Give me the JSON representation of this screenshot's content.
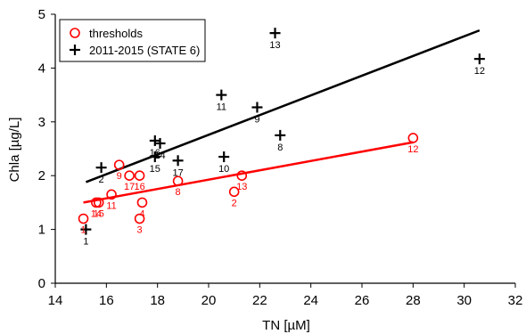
{
  "chart_data": {
    "type": "scatter",
    "xlabel": "TN [µM]",
    "ylabel": "Chla [µg/L]",
    "xlim": [
      14,
      32
    ],
    "ylim": [
      0,
      5
    ],
    "x_ticks": [
      14,
      16,
      18,
      20,
      22,
      24,
      26,
      28,
      30,
      32
    ],
    "y_ticks": [
      0,
      1,
      2,
      3,
      4,
      5
    ],
    "grid": false,
    "legend_position": "top-left",
    "series": [
      {
        "name": "thresholds",
        "marker": "circle",
        "color": "#ff0000",
        "points": [
          {
            "x": 15.1,
            "y": 1.2,
            "label": "1"
          },
          {
            "x": 15.6,
            "y": 1.5,
            "label": "14"
          },
          {
            "x": 15.7,
            "y": 1.5,
            "label": "15"
          },
          {
            "x": 16.2,
            "y": 1.65,
            "label": "11"
          },
          {
            "x": 16.5,
            "y": 2.2,
            "label": "9"
          },
          {
            "x": 16.9,
            "y": 2.0,
            "label": "17"
          },
          {
            "x": 17.3,
            "y": 2.0,
            "label": "16"
          },
          {
            "x": 17.3,
            "y": 1.2,
            "label": "3"
          },
          {
            "x": 17.4,
            "y": 1.5,
            "label": "4"
          },
          {
            "x": 18.8,
            "y": 1.9,
            "label": "8"
          },
          {
            "x": 21.0,
            "y": 1.7,
            "label": "2"
          },
          {
            "x": 21.3,
            "y": 2.0,
            "label": "13"
          },
          {
            "x": 28.0,
            "y": 2.7,
            "label": "12"
          }
        ],
        "trend": {
          "x": [
            15.1,
            28.0
          ],
          "y": [
            1.5,
            2.62
          ]
        }
      },
      {
        "name": "2011-2015 (STATE 6)",
        "marker": "plus",
        "color": "#000000",
        "points": [
          {
            "x": 15.2,
            "y": 1.0,
            "label": "1"
          },
          {
            "x": 15.8,
            "y": 2.15,
            "label": "2"
          },
          {
            "x": 17.9,
            "y": 2.65,
            "label": "16"
          },
          {
            "x": 18.1,
            "y": 2.6,
            "label": "14"
          },
          {
            "x": 17.9,
            "y": 2.35,
            "label": "15"
          },
          {
            "x": 18.8,
            "y": 2.28,
            "label": "17"
          },
          {
            "x": 20.5,
            "y": 3.5,
            "label": "11"
          },
          {
            "x": 20.6,
            "y": 2.35,
            "label": "10"
          },
          {
            "x": 21.9,
            "y": 3.27,
            "label": "9"
          },
          {
            "x": 22.8,
            "y": 2.75,
            "label": "8"
          },
          {
            "x": 22.6,
            "y": 4.65,
            "label": "13"
          },
          {
            "x": 30.6,
            "y": 4.17,
            "label": "12"
          }
        ],
        "trend": {
          "x": [
            15.2,
            30.6
          ],
          "y": [
            1.88,
            4.7
          ]
        }
      }
    ]
  }
}
